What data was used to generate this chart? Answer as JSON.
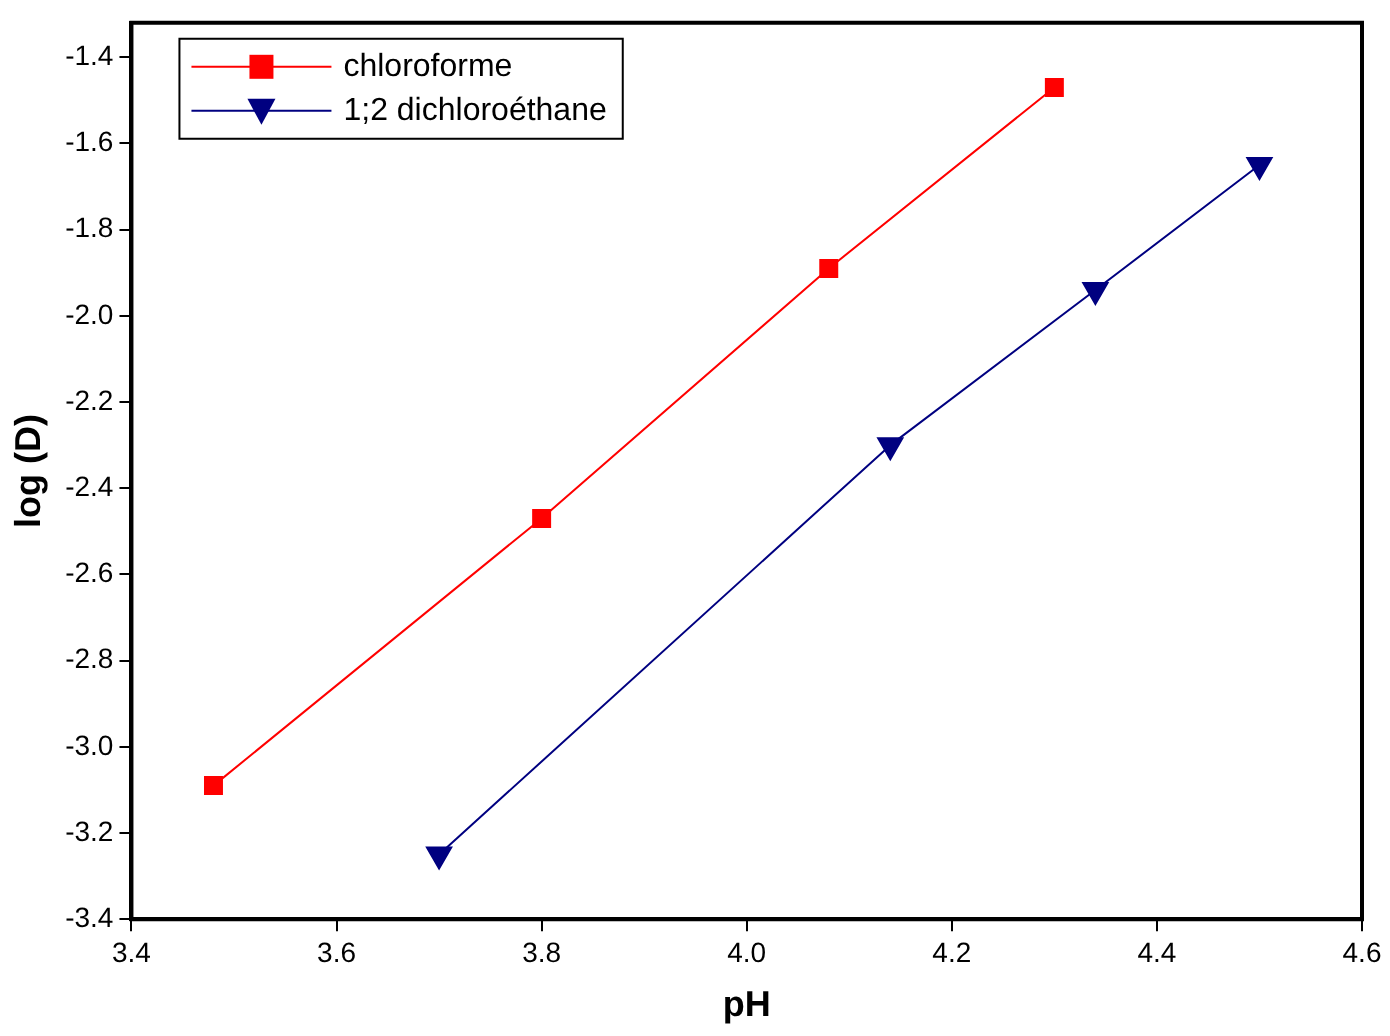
{
  "chart_data": {
    "type": "line",
    "xlabel": "pH",
    "ylabel": "log (D)",
    "xlim": [
      3.4,
      4.6
    ],
    "xticks": [
      3.4,
      3.6,
      3.8,
      {
        "value": 4,
        "label": "4.0"
      },
      4.2,
      4.4,
      4.6
    ],
    "ylim": [
      -3.4,
      -1.32
    ],
    "yticks": [
      -3.4,
      -3.2,
      {
        "value": -3,
        "label": "-3.0"
      },
      -2.8,
      -2.6,
      -2.4,
      -2.2,
      {
        "value": -2,
        "label": "-2.0"
      },
      -1.8,
      -1.6,
      -1.4
    ],
    "grid": false,
    "legend": "top left",
    "line_style": "solid",
    "series": [
      {
        "name": "chloroforme",
        "color": "#ff0000",
        "marker": "square",
        "x": [
          3.48,
          3.8,
          4.08,
          4.3
        ],
        "values": [
          -3.09,
          -2.47,
          -1.89,
          -1.47
        ]
      },
      {
        "name": "1;2 dichloroéthane",
        "color": "#000080",
        "marker": "triangle",
        "x": [
          3.7,
          4.14,
          4.34,
          4.5
        ],
        "values": [
          -3.25,
          -2.3,
          -1.94,
          -1.65
        ]
      }
    ]
  }
}
